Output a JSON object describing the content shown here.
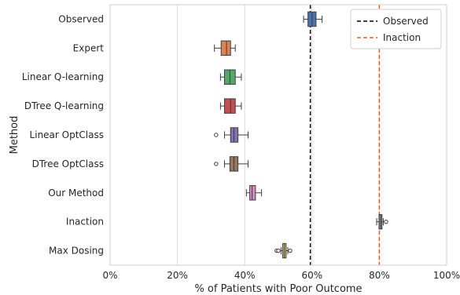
{
  "chart_data": {
    "type": "boxplot",
    "orientation": "horizontal",
    "xlabel": "% of Patients with Poor Outcome",
    "ylabel": "Method",
    "xlim": [
      0,
      100
    ],
    "xticks": [
      0,
      20,
      40,
      60,
      80,
      100
    ],
    "xtick_labels": [
      "0%",
      "20%",
      "40%",
      "60%",
      "80%",
      "100%"
    ],
    "grid": "vertical",
    "categories": [
      "Observed",
      "Expert",
      "Linear Q-learning",
      "DTree Q-learning",
      "Linear OptClass",
      "DTree OptClass",
      "Our Method",
      "Inaction",
      "Max Dosing"
    ],
    "boxes": [
      {
        "name": "Observed",
        "color": "#4c72b0",
        "whisker_low": 57.5,
        "q1": 58.8,
        "median": 60.0,
        "q3": 61.2,
        "whisker_high": 63.0,
        "outliers": []
      },
      {
        "name": "Expert",
        "color": "#dd8452",
        "whisker_low": 31.0,
        "q1": 33.0,
        "median": 34.6,
        "q3": 35.8,
        "whisker_high": 37.2,
        "outliers": []
      },
      {
        "name": "Linear Q-learning",
        "color": "#55a868",
        "whisker_low": 32.8,
        "q1": 34.0,
        "median": 35.6,
        "q3": 37.2,
        "whisker_high": 39.0,
        "outliers": []
      },
      {
        "name": "DTree Q-learning",
        "color": "#c44e52",
        "whisker_low": 32.8,
        "q1": 34.0,
        "median": 35.8,
        "q3": 37.2,
        "whisker_high": 39.0,
        "outliers": []
      },
      {
        "name": "Linear OptClass",
        "color": "#8172b3",
        "whisker_low": 34.0,
        "q1": 35.8,
        "median": 36.8,
        "q3": 38.0,
        "whisker_high": 41.0,
        "outliers": [
          31.5
        ]
      },
      {
        "name": "DTree OptClass",
        "color": "#937860",
        "whisker_low": 34.0,
        "q1": 35.6,
        "median": 36.8,
        "q3": 38.0,
        "whisker_high": 41.0,
        "outliers": [
          31.5
        ]
      },
      {
        "name": "Our Method",
        "color": "#da8bc3",
        "whisker_low": 40.5,
        "q1": 41.5,
        "median": 42.2,
        "q3": 43.2,
        "whisker_high": 45.0,
        "outliers": []
      },
      {
        "name": "Inaction",
        "color": "#8c8c8c",
        "whisker_low": 79.2,
        "q1": 79.9,
        "median": 80.4,
        "q3": 80.8,
        "whisker_high": 81.2,
        "outliers": [
          82.0
        ]
      },
      {
        "name": "Max Dosing",
        "color": "#ccb974",
        "whisker_low": 50.8,
        "q1": 51.3,
        "median": 51.8,
        "q3": 52.3,
        "whisker_high": 52.8,
        "outliers": [
          49.5,
          50.0,
          53.5
        ]
      }
    ],
    "reference_lines": [
      {
        "name": "Observed",
        "x": 59.5,
        "color": "#000000",
        "style": "dashed"
      },
      {
        "name": "Inaction",
        "x": 80.0,
        "color": "#ff5a1f",
        "style": "dashed"
      }
    ],
    "legend": {
      "placement": "top-right",
      "entries": [
        {
          "label": "Observed",
          "color": "#000000",
          "style": "dashed"
        },
        {
          "label": "Inaction",
          "color": "#ff5a1f",
          "style": "dashed"
        }
      ]
    }
  }
}
